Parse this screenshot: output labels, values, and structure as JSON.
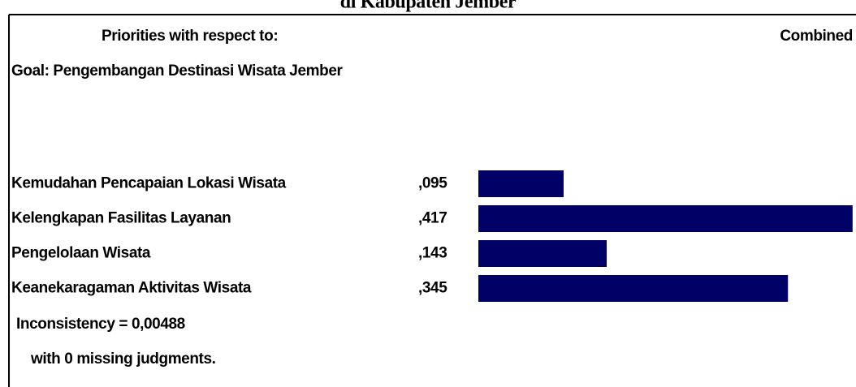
{
  "window_title": "di Kabupaten Jember",
  "header": {
    "priorities_label": "Priorities with respect to:",
    "combined_label": "Combined",
    "goal": "Goal: Pengembangan Destinasi Wisata Jember"
  },
  "chart_data": {
    "type": "bar",
    "categories": [
      "Kemudahan Pencapaian Lokasi Wisata",
      "Kelengkapan Fasilitas Layanan",
      "Pengelolaan Wisata",
      "Keanekaragaman Aktivitas Wisata"
    ],
    "values": [
      0.095,
      0.417,
      0.143,
      0.345
    ],
    "value_labels": [
      ",095",
      ",417",
      ",143",
      ",345"
    ],
    "color": "#000066",
    "label_color": "#1414ff"
  },
  "footer": {
    "inconsistency": "Inconsistency = 0,00488",
    "missing": "with 0  missing judgments."
  }
}
